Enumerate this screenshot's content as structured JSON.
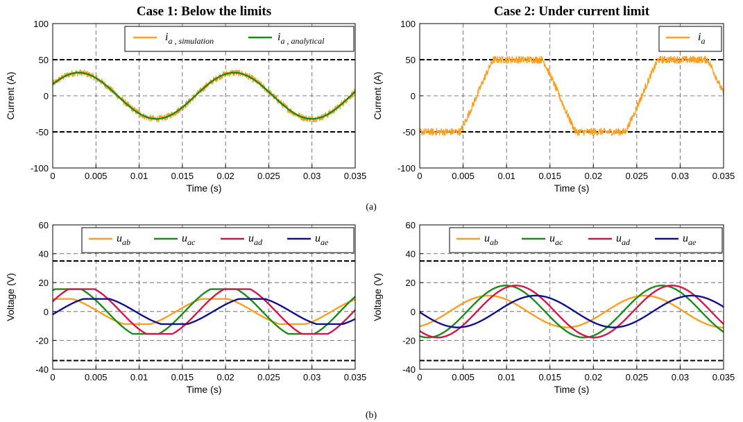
{
  "figure": {
    "caption_a": "(a)",
    "caption_b": "(b)"
  },
  "chart_data": [
    {
      "type": "line",
      "title": "Case 1: Below the limits",
      "xlabel": "Time (s)",
      "ylabel": "Current (A)",
      "xlim": [
        0,
        0.035
      ],
      "ylim": [
        -100,
        100
      ],
      "xticks": [
        "0",
        "0.005",
        "0.01",
        "0.015",
        "0.02",
        "0.025",
        "0.03",
        "0.035"
      ],
      "yticks": [
        "-100",
        "-50",
        "0",
        "50",
        "100"
      ],
      "grid": true,
      "legend_position": "top-right",
      "limit_lines": [
        50,
        -50
      ],
      "series": [
        {
          "name": "i_a, simulation",
          "legend_main": "i",
          "legend_sub": "a , simulation",
          "color": "#ff9e1f",
          "noise": 4.5,
          "formula": "sine",
          "amplitude": 32,
          "frequency_hz": 55.6,
          "phase_rad": 0.52
        },
        {
          "name": "i_a, analytical",
          "legend_main": "i",
          "legend_sub": "a , analytical",
          "color": "#1a8a1a",
          "noise": 0,
          "formula": "sine",
          "amplitude": 32,
          "frequency_hz": 55.6,
          "phase_rad": 0.52
        }
      ]
    },
    {
      "type": "line",
      "title": "Case 2: Under current limit",
      "xlabel": "Time (s)",
      "ylabel": "Current (A)",
      "xlim": [
        0,
        0.035
      ],
      "ylim": [
        -100,
        100
      ],
      "xticks": [
        "0",
        "0.005",
        "0.01",
        "0.015",
        "0.02",
        "0.025",
        "0.03",
        "0.035"
      ],
      "yticks": [
        "-100",
        "-50",
        "0",
        "50",
        "100"
      ],
      "grid": true,
      "legend_position": "top-right",
      "limit_lines": [
        50,
        -50
      ],
      "series": [
        {
          "name": "i_a",
          "legend_main": "i",
          "legend_sub": "a",
          "color": "#ff9e1f",
          "noise": 5,
          "formula": "clipped-sine",
          "amplitude": 85,
          "clip": 50,
          "frequency_hz": 52.6,
          "phase_rad": -2.17
        }
      ]
    },
    {
      "type": "line",
      "title": "",
      "xlabel": "Time (s)",
      "ylabel": "Voltage (V)",
      "xlim": [
        0,
        0.035
      ],
      "ylim": [
        -40,
        60
      ],
      "xticks": [
        "0",
        "0.005",
        "0.01",
        "0.015",
        "0.02",
        "0.025",
        "0.03",
        "0.035"
      ],
      "yticks": [
        "-40",
        "-20",
        "0",
        "20",
        "40",
        "60"
      ],
      "grid": true,
      "legend_position": "top",
      "limit_lines": [
        35,
        -34
      ],
      "series": [
        {
          "name": "u_ab",
          "legend_main": "u",
          "legend_sub": "ab",
          "color": "#ff9e1f",
          "formula": "flattop-sine",
          "amplitude": 9,
          "frequency_hz": 55.6,
          "phase_rad": 1.3
        },
        {
          "name": "u_ac",
          "legend_main": "u",
          "legend_sub": "ac",
          "color": "#1a8a1a",
          "formula": "flattop-sine",
          "amplitude": 16,
          "frequency_hz": 55.6,
          "phase_rad": 0.95
        },
        {
          "name": "u_ad",
          "legend_main": "u",
          "legend_sub": "ad",
          "color": "#d6154a",
          "formula": "flattop-sine",
          "amplitude": 16,
          "frequency_hz": 55.6,
          "phase_rad": 0.4
        },
        {
          "name": "u_ae",
          "legend_main": "u",
          "legend_sub": "ae",
          "color": "#10108f",
          "formula": "flattop-sine",
          "amplitude": 9,
          "frequency_hz": 55.6,
          "phase_rad": -0.2
        }
      ]
    },
    {
      "type": "line",
      "title": "",
      "xlabel": "Time (s)",
      "ylabel": "Voltage (V)",
      "xlim": [
        0,
        0.035
      ],
      "ylim": [
        -40,
        60
      ],
      "xticks": [
        "0",
        "0.005",
        "0.01",
        "0.015",
        "0.02",
        "0.025",
        "0.03",
        "0.035"
      ],
      "yticks": [
        "-40",
        "-20",
        "0",
        "20",
        "40",
        "60"
      ],
      "grid": true,
      "legend_position": "top",
      "limit_lines": [
        35,
        -34
      ],
      "series": [
        {
          "name": "u_ab",
          "legend_main": "u",
          "legend_sub": "ab",
          "color": "#ff9e1f",
          "formula": "sine",
          "amplitude": 11,
          "frequency_hz": 55.6,
          "phase_rad": -1.2
        },
        {
          "name": "u_ac",
          "legend_main": "u",
          "legend_sub": "ac",
          "color": "#1a8a1a",
          "formula": "sine",
          "amplitude": 18,
          "frequency_hz": 55.6,
          "phase_rad": -1.9
        },
        {
          "name": "u_ad",
          "legend_main": "u",
          "legend_sub": "ad",
          "color": "#d6154a",
          "formula": "sine",
          "amplitude": 18,
          "frequency_hz": 55.6,
          "phase_rad": -2.3
        },
        {
          "name": "u_ae",
          "legend_main": "u",
          "legend_sub": "ae",
          "color": "#10108f",
          "formula": "sine",
          "amplitude": 11,
          "frequency_hz": 55.6,
          "phase_rad": -3.1
        }
      ]
    }
  ]
}
